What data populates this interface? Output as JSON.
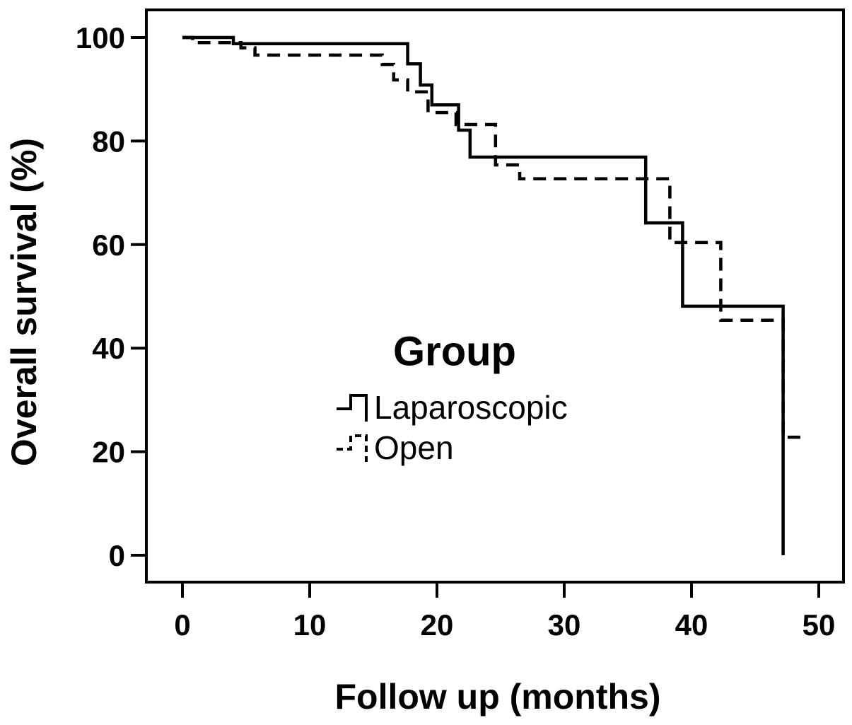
{
  "figure": {
    "background_color": "#ffffff",
    "line_color": "#000000"
  },
  "chart_data": {
    "type": "line",
    "subtype": "kaplan-meier-step",
    "title": "",
    "xlabel": "Follow up (months)",
    "ylabel": "Overall survival (%)",
    "xlim": [
      0,
      50
    ],
    "ylim": [
      0,
      100
    ],
    "x_ticks": [
      0,
      10,
      20,
      30,
      40,
      50
    ],
    "y_ticks": [
      0,
      20,
      40,
      60,
      80,
      100
    ],
    "grid": false,
    "legend": {
      "title": "Group",
      "position": "center-of-plot",
      "entries": [
        {
          "name": "Laparoscopic",
          "line_style": "solid",
          "color": "#000000"
        },
        {
          "name": "Open",
          "line_style": "dashed",
          "color": "#000000"
        }
      ]
    },
    "series": [
      {
        "name": "Laparoscopic",
        "line_style": "solid",
        "color": "#000000",
        "steps": [
          [
            0,
            100
          ],
          [
            4,
            98.8
          ],
          [
            17.7,
            94.9
          ],
          [
            18.7,
            90.8
          ],
          [
            19.6,
            87.0
          ],
          [
            21.7,
            82.1
          ],
          [
            22.6,
            76.9
          ],
          [
            36.4,
            64.2
          ],
          [
            39.3,
            48.1
          ],
          [
            47.2,
            0
          ]
        ],
        "end_month": 47.2
      },
      {
        "name": "Open",
        "line_style": "dashed",
        "color": "#000000",
        "steps": [
          [
            0,
            100
          ],
          [
            0.8,
            99.0
          ],
          [
            4.6,
            98.0
          ],
          [
            5.7,
            96.6
          ],
          [
            15.7,
            94.8
          ],
          [
            16.6,
            91.8
          ],
          [
            17.7,
            89.5
          ],
          [
            19.3,
            85.5
          ],
          [
            21.5,
            83.2
          ],
          [
            24.6,
            75.4
          ],
          [
            26.5,
            72.7
          ],
          [
            38.3,
            60.4
          ],
          [
            42.3,
            45.4
          ],
          [
            47.2,
            22.8
          ]
        ],
        "end_month": 48.9
      }
    ]
  }
}
